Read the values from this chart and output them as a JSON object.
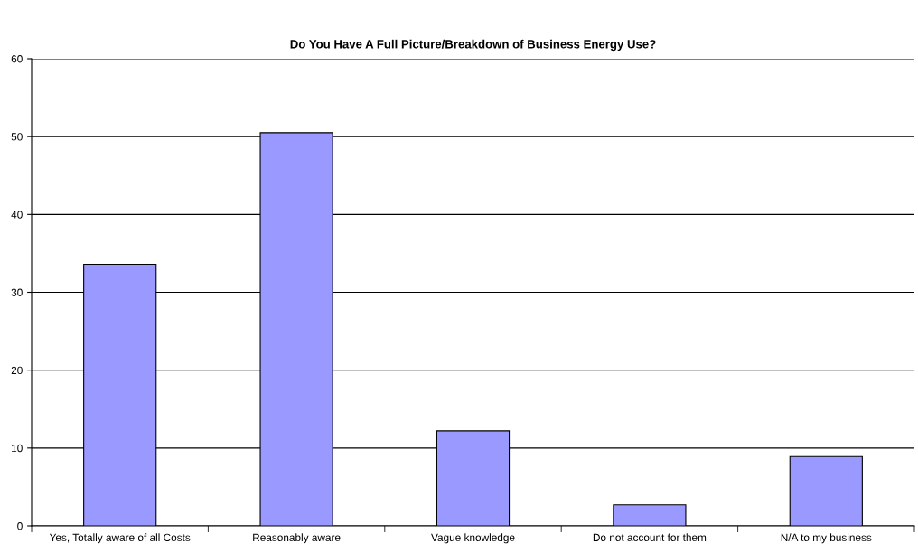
{
  "chart_data": {
    "type": "bar",
    "title": "Do You Have A Full Picture/Breakdown of Business Energy Use?",
    "categories": [
      "Yes, Totally aware of all Costs",
      "Reasonably aware",
      "Vague knowledge",
      "Do not account for them",
      "N/A to my business"
    ],
    "values": [
      33.6,
      50.5,
      12.2,
      2.7,
      8.9
    ],
    "color": "#9999ff",
    "ylim": [
      0,
      60
    ],
    "yticks": [
      0,
      10,
      20,
      30,
      40,
      50,
      60
    ],
    "grid": "y",
    "legend": false
  }
}
